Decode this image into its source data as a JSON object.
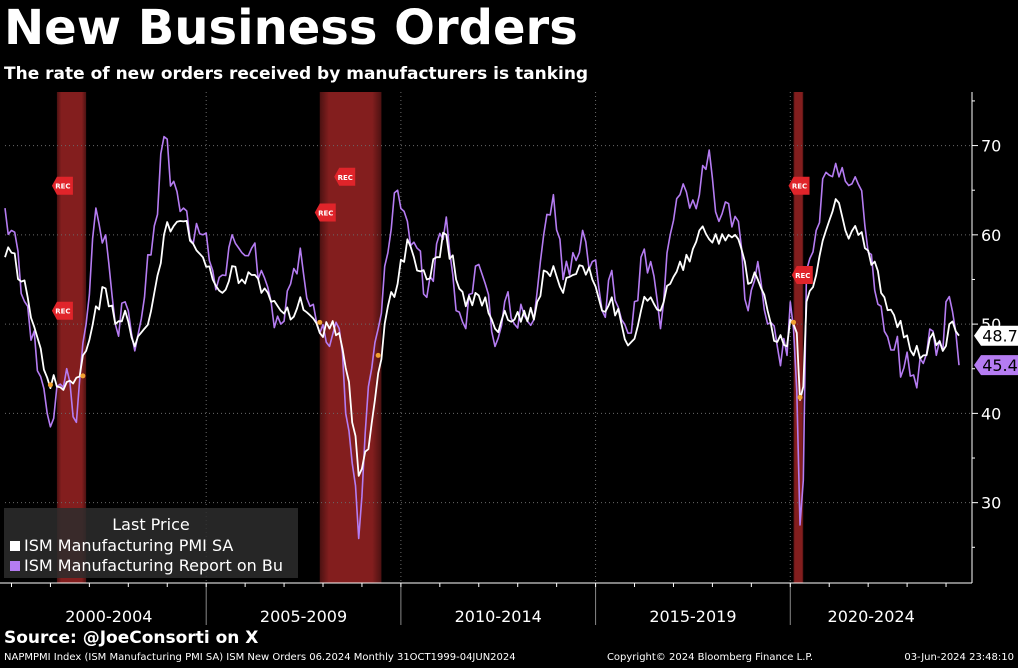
{
  "header": {
    "title": "New Business Orders",
    "subtitle": "The rate of new orders received by manufacturers is tanking"
  },
  "legend": {
    "title": "Last Price",
    "items": [
      "ISM Manufacturing PMI SA",
      "ISM Manufacturing Report on Bu"
    ]
  },
  "source": "Source: @JoeConsorti on X",
  "footer": {
    "left": "NAPMPMI Index (ISM Manufacturing PMI SA) ISM New Orders 06.2024  Monthly 31OCT1999-04JUN2024",
    "mid": "Copyright© 2024 Bloomberg Finance L.P.",
    "right": "03-Jun-2024 23:48:10"
  },
  "colors": {
    "background": "#000000",
    "pmi": "#ffffff",
    "new_orders": "#b57cf2",
    "recession": "#8a2020",
    "rec_marker": "#e0242a",
    "event_dot": "#f0a030"
  },
  "chart_data": {
    "type": "line",
    "x_start": "1999-11",
    "x_end": "2024-05",
    "ylim": [
      21,
      76
    ],
    "yticks": [
      30,
      40,
      50,
      60,
      70
    ],
    "grid": true,
    "legend_position": "bottom-left",
    "x_period_labels": [
      {
        "label": "2000-2004",
        "start": "2000-01",
        "end": "2004-12"
      },
      {
        "label": "2005-2009",
        "start": "2005-01",
        "end": "2009-12"
      },
      {
        "label": "2010-2014",
        "start": "2010-01",
        "end": "2014-12"
      },
      {
        "label": "2015-2019",
        "start": "2015-01",
        "end": "2019-12"
      },
      {
        "label": "2020-2024",
        "start": "2020-01",
        "end": "2024-12"
      }
    ],
    "recessions": [
      {
        "start": "2001-03",
        "end": "2001-11"
      },
      {
        "start": "2007-12",
        "end": "2009-06"
      },
      {
        "start": "2020-02",
        "end": "2020-04"
      }
    ],
    "rec_markers": [
      {
        "date": "2001-03",
        "value": 65.5
      },
      {
        "date": "2001-03",
        "value": 51.5
      },
      {
        "date": "2007-12",
        "value": 62.5
      },
      {
        "date": "2008-06",
        "value": 66.5
      },
      {
        "date": "2020-02",
        "value": 65.5
      },
      {
        "date": "2020-03",
        "value": 55.5
      }
    ],
    "rec_label": "REC",
    "last_values": [
      {
        "series": 0,
        "label": "48.7",
        "value": 48.7
      },
      {
        "series": 1,
        "label": "45.4",
        "value": 45.4
      }
    ],
    "series": [
      {
        "name": "ISM Manufacturing PMI SA",
        "anchors": [
          [
            "1999-11",
            57.5
          ],
          [
            "2000-01",
            58.0
          ],
          [
            "2000-06",
            53.0
          ],
          [
            "2000-12",
            44.0
          ],
          [
            "2001-03",
            43.0
          ],
          [
            "2001-06",
            43.5
          ],
          [
            "2001-09",
            44.0
          ],
          [
            "2001-12",
            47.0
          ],
          [
            "2002-03",
            52.0
          ],
          [
            "2002-06",
            54.0
          ],
          [
            "2002-09",
            50.0
          ],
          [
            "2002-12",
            51.5
          ],
          [
            "2003-03",
            47.5
          ],
          [
            "2003-06",
            49.5
          ],
          [
            "2003-09",
            53.5
          ],
          [
            "2003-12",
            60.0
          ],
          [
            "2004-03",
            61.0
          ],
          [
            "2004-06",
            61.5
          ],
          [
            "2004-09",
            59.0
          ],
          [
            "2004-12",
            57.5
          ],
          [
            "2005-03",
            55.0
          ],
          [
            "2005-06",
            53.5
          ],
          [
            "2005-09",
            56.5
          ],
          [
            "2005-12",
            55.0
          ],
          [
            "2006-03",
            55.5
          ],
          [
            "2006-06",
            53.5
          ],
          [
            "2006-09",
            52.5
          ],
          [
            "2006-12",
            51.5
          ],
          [
            "2007-03",
            50.5
          ],
          [
            "2007-06",
            53.0
          ],
          [
            "2007-09",
            51.0
          ],
          [
            "2007-12",
            49.0
          ],
          [
            "2008-03",
            49.5
          ],
          [
            "2008-06",
            49.0
          ],
          [
            "2008-09",
            43.5
          ],
          [
            "2008-12",
            33.0
          ],
          [
            "2009-03",
            36.0
          ],
          [
            "2009-06",
            44.5
          ],
          [
            "2009-09",
            52.0
          ],
          [
            "2009-12",
            54.5
          ],
          [
            "2010-03",
            59.5
          ],
          [
            "2010-06",
            56.0
          ],
          [
            "2010-09",
            55.0
          ],
          [
            "2010-12",
            57.5
          ],
          [
            "2011-03",
            60.0
          ],
          [
            "2011-06",
            55.0
          ],
          [
            "2011-09",
            52.0
          ],
          [
            "2011-12",
            53.5
          ],
          [
            "2012-03",
            53.0
          ],
          [
            "2012-06",
            49.5
          ],
          [
            "2012-09",
            51.5
          ],
          [
            "2012-12",
            50.5
          ],
          [
            "2013-03",
            51.5
          ],
          [
            "2013-06",
            50.5
          ],
          [
            "2013-09",
            56.0
          ],
          [
            "2013-12",
            56.5
          ],
          [
            "2014-03",
            53.5
          ],
          [
            "2014-06",
            55.5
          ],
          [
            "2014-09",
            56.5
          ],
          [
            "2014-12",
            55.0
          ],
          [
            "2015-03",
            51.5
          ],
          [
            "2015-06",
            53.0
          ],
          [
            "2015-09",
            50.0
          ],
          [
            "2015-12",
            48.0
          ],
          [
            "2016-03",
            51.5
          ],
          [
            "2016-06",
            53.0
          ],
          [
            "2016-09",
            51.5
          ],
          [
            "2016-12",
            54.5
          ],
          [
            "2017-03",
            57.0
          ],
          [
            "2017-06",
            57.0
          ],
          [
            "2017-09",
            60.5
          ],
          [
            "2017-12",
            59.5
          ],
          [
            "2018-03",
            59.0
          ],
          [
            "2018-06",
            60.0
          ],
          [
            "2018-09",
            59.5
          ],
          [
            "2018-12",
            54.5
          ],
          [
            "2019-03",
            55.0
          ],
          [
            "2019-06",
            51.5
          ],
          [
            "2019-09",
            48.0
          ],
          [
            "2019-12",
            47.5
          ],
          [
            "2020-01",
            50.5
          ],
          [
            "2020-02",
            50.0
          ],
          [
            "2020-03",
            49.0
          ],
          [
            "2020-04",
            41.5
          ],
          [
            "2020-05",
            43.0
          ],
          [
            "2020-06",
            52.5
          ],
          [
            "2020-09",
            55.5
          ],
          [
            "2020-12",
            60.5
          ],
          [
            "2021-03",
            64.0
          ],
          [
            "2021-06",
            60.5
          ],
          [
            "2021-09",
            61.0
          ],
          [
            "2021-12",
            58.5
          ],
          [
            "2022-03",
            57.0
          ],
          [
            "2022-06",
            53.0
          ],
          [
            "2022-09",
            51.0
          ],
          [
            "2022-12",
            48.5
          ],
          [
            "2023-03",
            46.5
          ],
          [
            "2023-06",
            46.5
          ],
          [
            "2023-09",
            49.0
          ],
          [
            "2023-12",
            47.0
          ],
          [
            "2024-03",
            50.3
          ],
          [
            "2024-04",
            49.2
          ],
          [
            "2024-05",
            48.7
          ]
        ]
      },
      {
        "name": "ISM Manufacturing Report on Bu",
        "anchors": [
          [
            "1999-11",
            63.0
          ],
          [
            "2000-01",
            60.5
          ],
          [
            "2000-06",
            52.0
          ],
          [
            "2000-12",
            40.0
          ],
          [
            "2001-01",
            38.5
          ],
          [
            "2001-03",
            43.0
          ],
          [
            "2001-06",
            45.0
          ],
          [
            "2001-09",
            39.0
          ],
          [
            "2001-12",
            50.0
          ],
          [
            "2002-03",
            63.0
          ],
          [
            "2002-06",
            60.0
          ],
          [
            "2002-09",
            50.0
          ],
          [
            "2002-12",
            52.5
          ],
          [
            "2003-03",
            47.0
          ],
          [
            "2003-06",
            53.0
          ],
          [
            "2003-09",
            61.0
          ],
          [
            "2003-12",
            71.0
          ],
          [
            "2004-03",
            66.0
          ],
          [
            "2004-06",
            63.0
          ],
          [
            "2004-09",
            59.0
          ],
          [
            "2004-12",
            60.0
          ],
          [
            "2005-03",
            56.0
          ],
          [
            "2005-06",
            55.5
          ],
          [
            "2005-09",
            60.0
          ],
          [
            "2005-12",
            58.0
          ],
          [
            "2006-03",
            58.5
          ],
          [
            "2006-06",
            56.0
          ],
          [
            "2006-09",
            52.5
          ],
          [
            "2006-12",
            50.0
          ],
          [
            "2007-03",
            54.5
          ],
          [
            "2007-06",
            58.5
          ],
          [
            "2007-09",
            52.0
          ],
          [
            "2007-12",
            49.0
          ],
          [
            "2008-03",
            47.5
          ],
          [
            "2008-06",
            49.5
          ],
          [
            "2008-09",
            38.0
          ],
          [
            "2008-12",
            26.0
          ],
          [
            "2009-03",
            43.0
          ],
          [
            "2009-06",
            49.5
          ],
          [
            "2009-09",
            58.0
          ],
          [
            "2009-12",
            65.0
          ],
          [
            "2010-03",
            61.5
          ],
          [
            "2010-06",
            58.5
          ],
          [
            "2010-09",
            53.0
          ],
          [
            "2010-12",
            59.0
          ],
          [
            "2011-03",
            62.0
          ],
          [
            "2011-06",
            51.5
          ],
          [
            "2011-09",
            49.5
          ],
          [
            "2011-12",
            56.5
          ],
          [
            "2012-03",
            54.5
          ],
          [
            "2012-06",
            47.5
          ],
          [
            "2012-09",
            52.5
          ],
          [
            "2012-12",
            50.0
          ],
          [
            "2013-03",
            51.0
          ],
          [
            "2013-06",
            50.5
          ],
          [
            "2013-09",
            60.0
          ],
          [
            "2013-12",
            64.5
          ],
          [
            "2014-03",
            55.0
          ],
          [
            "2014-06",
            58.0
          ],
          [
            "2014-09",
            60.5
          ],
          [
            "2014-12",
            57.0
          ],
          [
            "2015-03",
            51.5
          ],
          [
            "2015-06",
            56.0
          ],
          [
            "2015-09",
            50.5
          ],
          [
            "2015-12",
            49.0
          ],
          [
            "2016-03",
            57.5
          ],
          [
            "2016-06",
            57.0
          ],
          [
            "2016-09",
            49.5
          ],
          [
            "2016-12",
            60.0
          ],
          [
            "2017-03",
            64.5
          ],
          [
            "2017-06",
            63.0
          ],
          [
            "2017-09",
            64.5
          ],
          [
            "2017-12",
            69.5
          ],
          [
            "2018-03",
            61.5
          ],
          [
            "2018-06",
            63.5
          ],
          [
            "2018-09",
            61.5
          ],
          [
            "2018-12",
            51.5
          ],
          [
            "2019-03",
            57.0
          ],
          [
            "2019-06",
            50.0
          ],
          [
            "2019-09",
            47.5
          ],
          [
            "2019-12",
            46.5
          ],
          [
            "2020-01",
            52.5
          ],
          [
            "2020-02",
            49.5
          ],
          [
            "2020-03",
            42.5
          ],
          [
            "2020-04",
            27.5
          ],
          [
            "2020-05",
            32.5
          ],
          [
            "2020-06",
            56.0
          ],
          [
            "2020-09",
            60.5
          ],
          [
            "2020-12",
            67.0
          ],
          [
            "2021-03",
            68.0
          ],
          [
            "2021-06",
            66.0
          ],
          [
            "2021-09",
            66.5
          ],
          [
            "2021-12",
            61.0
          ],
          [
            "2022-03",
            53.8
          ],
          [
            "2022-06",
            49.2
          ],
          [
            "2022-09",
            47.1
          ],
          [
            "2022-12",
            45.1
          ],
          [
            "2023-03",
            44.3
          ],
          [
            "2023-06",
            45.6
          ],
          [
            "2023-09",
            49.2
          ],
          [
            "2023-12",
            47.0
          ],
          [
            "2024-01",
            52.5
          ],
          [
            "2024-03",
            51.4
          ],
          [
            "2024-04",
            49.1
          ],
          [
            "2024-05",
            45.4
          ]
        ]
      }
    ]
  }
}
